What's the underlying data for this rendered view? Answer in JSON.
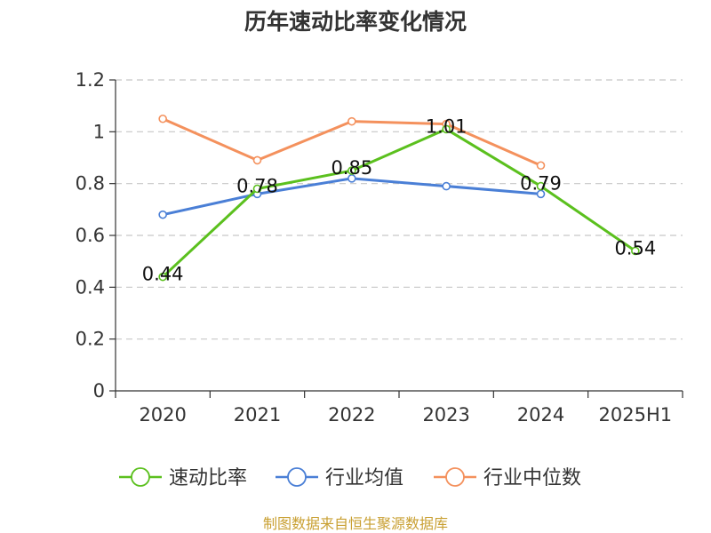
{
  "chart_data": {
    "type": "line",
    "title": "历年速动比率变化情况",
    "categories": [
      "2020",
      "2021",
      "2022",
      "2023",
      "2024",
      "2025H1"
    ],
    "ylim": [
      0,
      1.2
    ],
    "yticks": [
      "0",
      "0.2",
      "0.4",
      "0.6",
      "0.8",
      "1",
      "1.2"
    ],
    "grid": true,
    "legend_position": "bottom",
    "series": [
      {
        "name": "速动比率",
        "color": "#5bc01e",
        "values": [
          0.44,
          0.78,
          0.85,
          1.01,
          0.79,
          0.54
        ],
        "labels": [
          "0.44",
          "0.78",
          "0.85",
          "1.01",
          "0.79",
          "0.54"
        ]
      },
      {
        "name": "行业均值",
        "color": "#4a7fd6",
        "values": [
          0.68,
          0.76,
          0.82,
          0.79,
          0.76,
          null
        ]
      },
      {
        "name": "行业中位数",
        "color": "#f4915d",
        "values": [
          1.05,
          0.89,
          1.04,
          1.03,
          0.87,
          null
        ]
      }
    ]
  },
  "source": "制图数据来自恒生聚源数据库"
}
